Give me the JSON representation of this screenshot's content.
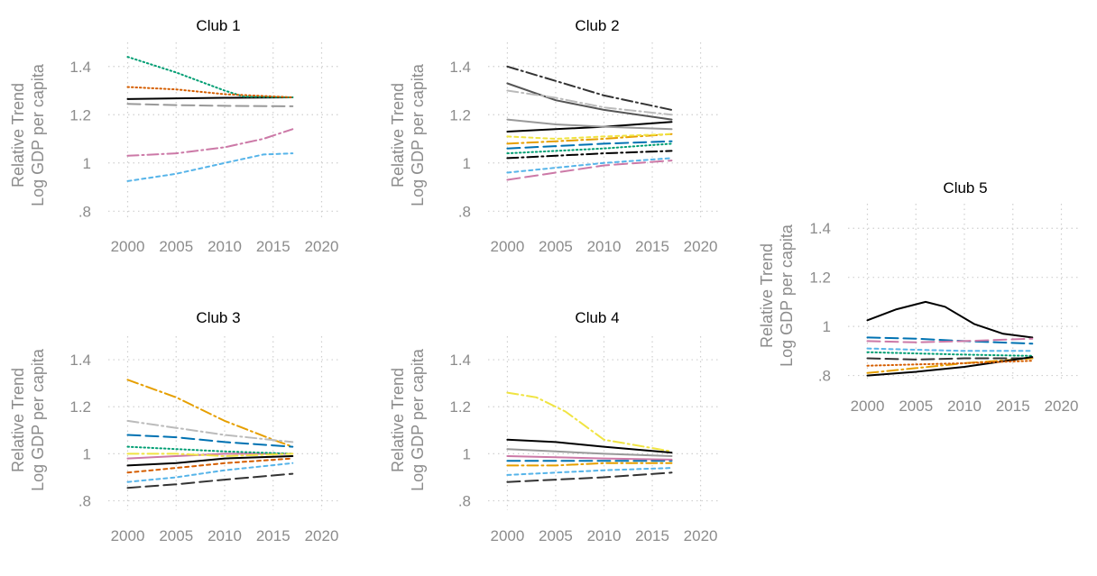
{
  "chart_data": [
    {
      "type": "line",
      "title": "Club 1",
      "ylabel": [
        "Relative Trend",
        "Log GDP per capita"
      ],
      "xlim": [
        1998,
        2022
      ],
      "ylim": [
        0.76,
        1.5
      ],
      "xticks": [
        2000,
        2005,
        2010,
        2015,
        2020
      ],
      "yticks": [
        0.8,
        1.0,
        1.2,
        1.4
      ],
      "ytick_labels": [
        ".8",
        "1",
        "1.2",
        "1.4"
      ],
      "grid": true,
      "series": [
        {
          "color": "#000000",
          "dash": "solid",
          "x": [
            2000,
            2005,
            2010,
            2017
          ],
          "y": [
            1.265,
            1.268,
            1.27,
            1.272
          ]
        },
        {
          "color": "#999999",
          "dash": "longdash",
          "x": [
            2000,
            2005,
            2010,
            2017
          ],
          "y": [
            1.245,
            1.24,
            1.237,
            1.235
          ]
        },
        {
          "color": "#009e73",
          "dash": "dot",
          "x": [
            2000,
            2005,
            2010,
            2012,
            2017
          ],
          "y": [
            1.44,
            1.375,
            1.3,
            1.275,
            1.272
          ]
        },
        {
          "color": "#d55e00",
          "dash": "dot",
          "x": [
            2000,
            2005,
            2010,
            2017
          ],
          "y": [
            1.315,
            1.305,
            1.285,
            1.272
          ]
        },
        {
          "color": "#cc79a7",
          "dash": "dashdot",
          "x": [
            2000,
            2005,
            2010,
            2014,
            2017
          ],
          "y": [
            1.03,
            1.04,
            1.065,
            1.1,
            1.14
          ]
        },
        {
          "color": "#56b4e9",
          "dash": "shortdash",
          "x": [
            2000,
            2005,
            2010,
            2014,
            2017
          ],
          "y": [
            0.925,
            0.955,
            1.0,
            1.035,
            1.04
          ]
        }
      ]
    },
    {
      "type": "line",
      "title": "Club 2",
      "ylabel": [
        "Relative Trend",
        "Log GDP per capita"
      ],
      "xlim": [
        1998,
        2022
      ],
      "ylim": [
        0.76,
        1.5
      ],
      "xticks": [
        2000,
        2005,
        2010,
        2015,
        2020
      ],
      "yticks": [
        0.8,
        1.0,
        1.2,
        1.4
      ],
      "ytick_labels": [
        ".8",
        "1",
        "1.2",
        "1.4"
      ],
      "grid": true,
      "series": [
        {
          "color": "#333333",
          "dash": "dashdot",
          "x": [
            2000,
            2005,
            2010,
            2017
          ],
          "y": [
            1.4,
            1.34,
            1.28,
            1.22
          ]
        },
        {
          "color": "#555555",
          "dash": "solid",
          "x": [
            2000,
            2005,
            2010,
            2017
          ],
          "y": [
            1.33,
            1.26,
            1.22,
            1.18
          ]
        },
        {
          "color": "#bbbbbb",
          "dash": "dashdot",
          "x": [
            2000,
            2005,
            2010,
            2017
          ],
          "y": [
            1.3,
            1.27,
            1.23,
            1.2
          ]
        },
        {
          "color": "#000000",
          "dash": "solid",
          "x": [
            2000,
            2005,
            2010,
            2017
          ],
          "y": [
            1.13,
            1.14,
            1.15,
            1.17
          ]
        },
        {
          "color": "#cc79a7",
          "dash": "longdash",
          "x": [
            2000,
            2005,
            2010,
            2017
          ],
          "y": [
            0.93,
            0.96,
            0.99,
            1.01
          ]
        },
        {
          "color": "#56b4e9",
          "dash": "shortdash",
          "x": [
            2000,
            2005,
            2010,
            2017
          ],
          "y": [
            0.96,
            0.98,
            1.0,
            1.02
          ]
        },
        {
          "color": "#0072b2",
          "dash": "longdash",
          "x": [
            2000,
            2005,
            2010,
            2017
          ],
          "y": [
            1.06,
            1.07,
            1.08,
            1.09
          ]
        },
        {
          "color": "#e69f00",
          "dash": "dashdot",
          "x": [
            2000,
            2005,
            2010,
            2017
          ],
          "y": [
            1.08,
            1.09,
            1.1,
            1.12
          ]
        },
        {
          "color": "#009e73",
          "dash": "dot",
          "x": [
            2000,
            2005,
            2010,
            2017
          ],
          "y": [
            1.04,
            1.05,
            1.06,
            1.08
          ]
        },
        {
          "color": "#f0e442",
          "dash": "shortdash",
          "x": [
            2000,
            2005,
            2010,
            2017
          ],
          "y": [
            1.11,
            1.1,
            1.11,
            1.12
          ]
        },
        {
          "color": "#000000",
          "dash": "dashdot",
          "x": [
            2000,
            2005,
            2010,
            2017
          ],
          "y": [
            1.02,
            1.03,
            1.04,
            1.05
          ]
        },
        {
          "color": "#999999",
          "dash": "solid",
          "x": [
            2000,
            2005,
            2010,
            2017
          ],
          "y": [
            1.18,
            1.16,
            1.15,
            1.14
          ]
        }
      ]
    },
    {
      "type": "line",
      "title": "Club 3",
      "ylabel": [
        "Relative Trend",
        "Log GDP per capita"
      ],
      "xlim": [
        1998,
        2022
      ],
      "ylim": [
        0.76,
        1.5
      ],
      "xticks": [
        2000,
        2005,
        2010,
        2015,
        2020
      ],
      "yticks": [
        0.8,
        1.0,
        1.2,
        1.4
      ],
      "ytick_labels": [
        ".8",
        "1",
        "1.2",
        "1.4"
      ],
      "grid": true,
      "series": [
        {
          "color": "#e69f00",
          "dash": "dashdot",
          "x": [
            2000,
            2005,
            2010,
            2015,
            2017
          ],
          "y": [
            1.315,
            1.24,
            1.14,
            1.06,
            1.03
          ]
        },
        {
          "color": "#bbbbbb",
          "dash": "dashdot",
          "x": [
            2000,
            2005,
            2010,
            2017
          ],
          "y": [
            1.14,
            1.11,
            1.08,
            1.05
          ]
        },
        {
          "color": "#0072b2",
          "dash": "longdash",
          "x": [
            2000,
            2005,
            2010,
            2017
          ],
          "y": [
            1.08,
            1.07,
            1.05,
            1.03
          ]
        },
        {
          "color": "#333333",
          "dash": "longdash",
          "x": [
            2000,
            2005,
            2010,
            2017
          ],
          "y": [
            0.855,
            0.87,
            0.89,
            0.915
          ]
        },
        {
          "color": "#56b4e9",
          "dash": "shortdash",
          "x": [
            2000,
            2005,
            2010,
            2017
          ],
          "y": [
            0.88,
            0.9,
            0.93,
            0.96
          ]
        },
        {
          "color": "#cc79a7",
          "dash": "solid",
          "x": [
            2000,
            2005,
            2010,
            2017
          ],
          "y": [
            0.98,
            0.99,
            1.0,
            1.0
          ]
        },
        {
          "color": "#009e73",
          "dash": "dot",
          "x": [
            2000,
            2005,
            2010,
            2017
          ],
          "y": [
            1.03,
            1.02,
            1.01,
            1.0
          ]
        },
        {
          "color": "#000000",
          "dash": "solid",
          "x": [
            2000,
            2005,
            2010,
            2017
          ],
          "y": [
            0.95,
            0.96,
            0.98,
            0.99
          ]
        },
        {
          "color": "#f0e442",
          "dash": "dashdot",
          "x": [
            2000,
            2005,
            2010,
            2017
          ],
          "y": [
            1.0,
            1.0,
            0.99,
            1.0
          ]
        },
        {
          "color": "#d55e00",
          "dash": "shortdash",
          "x": [
            2000,
            2005,
            2010,
            2017
          ],
          "y": [
            0.92,
            0.94,
            0.96,
            0.98
          ]
        }
      ]
    },
    {
      "type": "line",
      "title": "Club 4",
      "ylabel": [
        "Relative Trend",
        "Log GDP per capita"
      ],
      "xlim": [
        1998,
        2022
      ],
      "ylim": [
        0.76,
        1.5
      ],
      "xticks": [
        2000,
        2005,
        2010,
        2015,
        2020
      ],
      "yticks": [
        0.8,
        1.0,
        1.2,
        1.4
      ],
      "ytick_labels": [
        ".8",
        "1",
        "1.2",
        "1.4"
      ],
      "grid": true,
      "series": [
        {
          "color": "#f0e442",
          "dash": "dashdot",
          "x": [
            2000,
            2003,
            2006,
            2010,
            2017
          ],
          "y": [
            1.26,
            1.24,
            1.18,
            1.06,
            1.01
          ]
        },
        {
          "color": "#000000",
          "dash": "solid",
          "x": [
            2000,
            2005,
            2010,
            2017
          ],
          "y": [
            1.06,
            1.05,
            1.03,
            1.005
          ]
        },
        {
          "color": "#333333",
          "dash": "longdash",
          "x": [
            2000,
            2005,
            2010,
            2017
          ],
          "y": [
            0.88,
            0.89,
            0.9,
            0.92
          ]
        },
        {
          "color": "#56b4e9",
          "dash": "shortdash",
          "x": [
            2000,
            2005,
            2010,
            2017
          ],
          "y": [
            0.91,
            0.92,
            0.93,
            0.94
          ]
        },
        {
          "color": "#0072b2",
          "dash": "longdash",
          "x": [
            2000,
            2005,
            2010,
            2017
          ],
          "y": [
            0.97,
            0.97,
            0.97,
            0.97
          ]
        },
        {
          "color": "#e69f00",
          "dash": "dashdot",
          "x": [
            2000,
            2005,
            2010,
            2017
          ],
          "y": [
            0.95,
            0.95,
            0.96,
            0.96
          ]
        },
        {
          "color": "#999999",
          "dash": "solid",
          "x": [
            2000,
            2005,
            2010,
            2017
          ],
          "y": [
            1.02,
            1.01,
            1.0,
            0.99
          ]
        },
        {
          "color": "#cc79a7",
          "dash": "solid",
          "x": [
            2000,
            2005,
            2010,
            2017
          ],
          "y": [
            0.99,
            0.985,
            0.98,
            0.975
          ]
        }
      ]
    },
    {
      "type": "line",
      "title": "Club 5",
      "ylabel": [
        "Relative Trend",
        "Log GDP per capita"
      ],
      "xlim": [
        1998,
        2022
      ],
      "ylim": [
        0.78,
        1.5
      ],
      "xticks": [
        2000,
        2005,
        2010,
        2015,
        2020
      ],
      "yticks": [
        0.8,
        1.0,
        1.2,
        1.4
      ],
      "ytick_labels": [
        ".8",
        "1",
        "1.2",
        "1.4"
      ],
      "grid": true,
      "series": [
        {
          "color": "#000000",
          "dash": "solid",
          "x": [
            2000,
            2003,
            2006,
            2008,
            2011,
            2014,
            2017
          ],
          "y": [
            1.025,
            1.07,
            1.1,
            1.08,
            1.01,
            0.97,
            0.955
          ]
        },
        {
          "color": "#0072b2",
          "dash": "longdash",
          "x": [
            2000,
            2005,
            2010,
            2017
          ],
          "y": [
            0.955,
            0.95,
            0.94,
            0.93
          ]
        },
        {
          "color": "#cc79a7",
          "dash": "longdash",
          "x": [
            2000,
            2005,
            2010,
            2017
          ],
          "y": [
            0.94,
            0.935,
            0.94,
            0.95
          ]
        },
        {
          "color": "#56b4e9",
          "dash": "shortdash",
          "x": [
            2000,
            2005,
            2010,
            2017
          ],
          "y": [
            0.91,
            0.905,
            0.9,
            0.9
          ]
        },
        {
          "color": "#009e73",
          "dash": "dot",
          "x": [
            2000,
            2005,
            2010,
            2017
          ],
          "y": [
            0.895,
            0.89,
            0.885,
            0.88
          ]
        },
        {
          "color": "#333333",
          "dash": "longdash",
          "x": [
            2000,
            2005,
            2010,
            2017
          ],
          "y": [
            0.87,
            0.865,
            0.87,
            0.87
          ]
        },
        {
          "color": "#e69f00",
          "dash": "dashdot",
          "x": [
            2000,
            2005,
            2010,
            2017
          ],
          "y": [
            0.81,
            0.83,
            0.85,
            0.87
          ]
        },
        {
          "color": "#000000",
          "dash": "solid",
          "x": [
            2000,
            2005,
            2010,
            2017
          ],
          "y": [
            0.8,
            0.815,
            0.835,
            0.875
          ]
        },
        {
          "color": "#d55e00",
          "dash": "dot",
          "x": [
            2000,
            2005,
            2010,
            2017
          ],
          "y": [
            0.84,
            0.845,
            0.85,
            0.86
          ]
        }
      ]
    }
  ]
}
